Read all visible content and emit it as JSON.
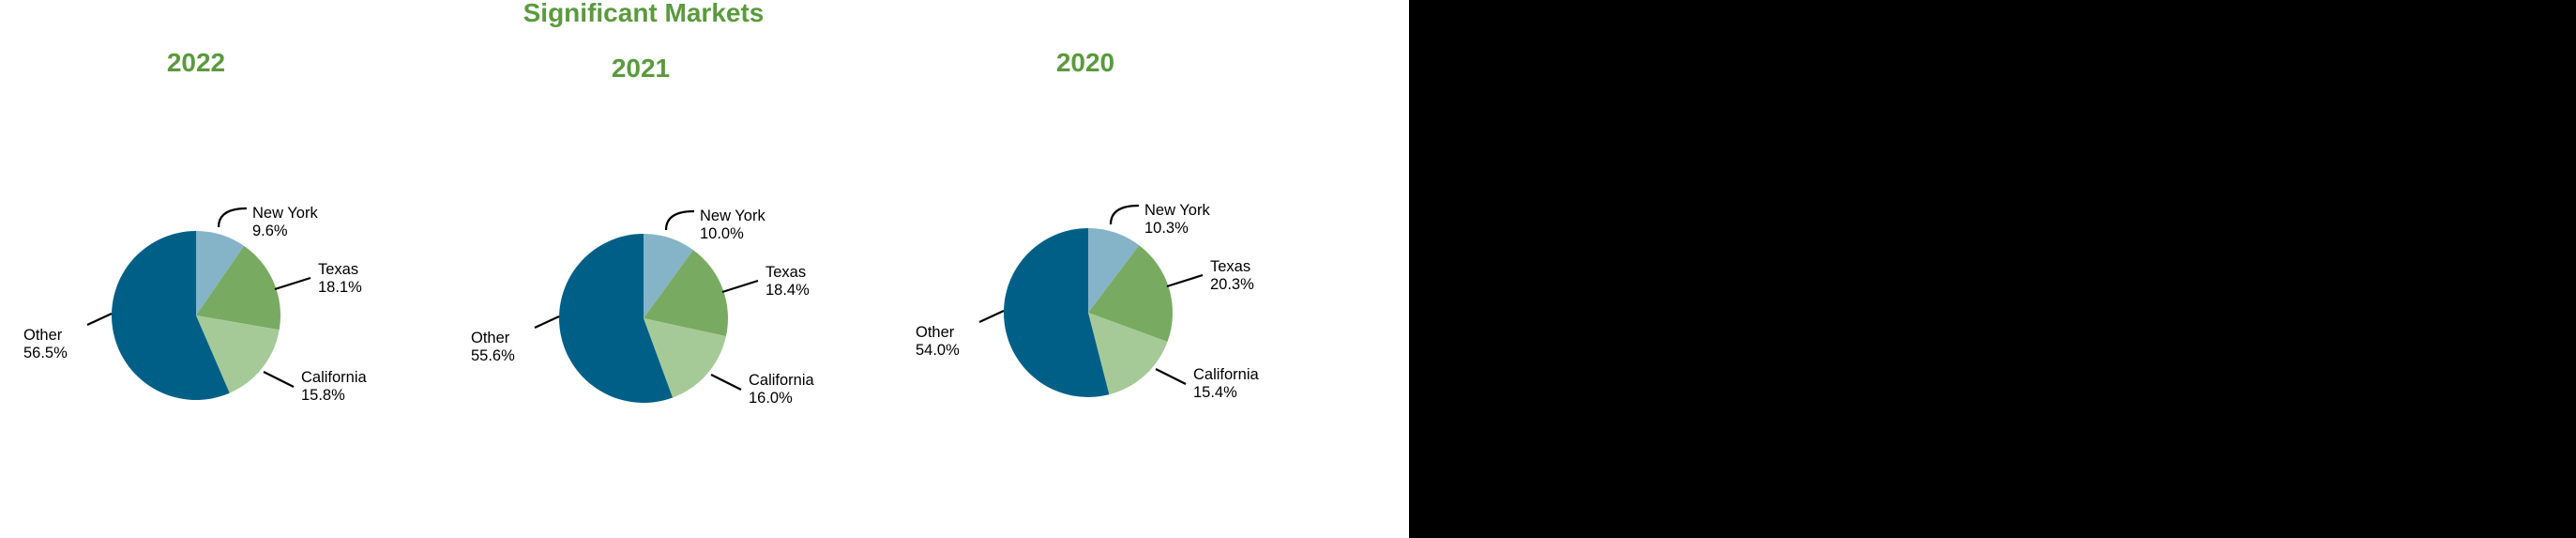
{
  "colors": {
    "title": "#5a9a3d",
    "background": "#ffffff",
    "page": "#000000",
    "new_york": "#85b3c8",
    "texas": "#78ab61",
    "california": "#a6ca97",
    "other": "#005f87"
  },
  "chart_data": {
    "type": "pie",
    "title": "Significant Markets",
    "charts": [
      {
        "title": "2022",
        "slices": [
          {
            "label": "New York",
            "value": 9.6,
            "display": "9.6%"
          },
          {
            "label": "Texas",
            "value": 18.1,
            "display": "18.1%"
          },
          {
            "label": "California",
            "value": 15.8,
            "display": "15.8%"
          },
          {
            "label": "Other",
            "value": 56.5,
            "display": "56.5%"
          }
        ]
      },
      {
        "title": "2021",
        "slices": [
          {
            "label": "New York",
            "value": 10.0,
            "display": "10.0%"
          },
          {
            "label": "Texas",
            "value": 18.4,
            "display": "18.4%"
          },
          {
            "label": "California",
            "value": 16.0,
            "display": "16.0%"
          },
          {
            "label": "Other",
            "value": 55.6,
            "display": "55.6%"
          }
        ]
      },
      {
        "title": "2020",
        "slices": [
          {
            "label": "New York",
            "value": 10.3,
            "display": "10.3%"
          },
          {
            "label": "Texas",
            "value": 20.3,
            "display": "20.3%"
          },
          {
            "label": "California",
            "value": 15.4,
            "display": "15.4%"
          },
          {
            "label": "Other",
            "value": 54.0,
            "display": "54.0%"
          }
        ]
      }
    ]
  }
}
